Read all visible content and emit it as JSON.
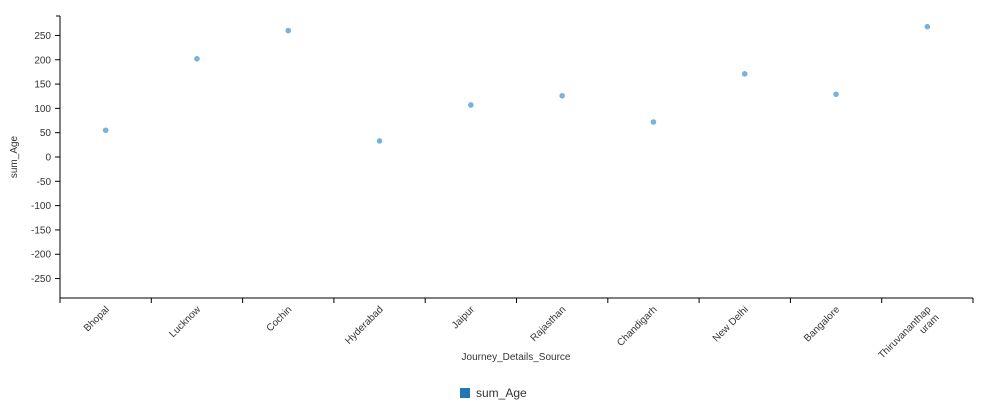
{
  "chart_data": {
    "type": "scatter",
    "xlabel": "Journey_Details_Source",
    "ylabel": "sum_Age",
    "categories": [
      "Bhopal",
      "Lucknow",
      "Cochin",
      "Hyderabad",
      "Jaipur",
      "Rajasthan",
      "Chandigarh",
      "New Delhi",
      "Bangalore",
      "Thiruvananthap uram"
    ],
    "series": [
      {
        "name": "sum_Age",
        "values": [
          55,
          202,
          260,
          33,
          107,
          126,
          72,
          171,
          129,
          268
        ]
      }
    ],
    "ylim": [
      -290,
      290
    ],
    "yticks": [
      -250,
      -200,
      -150,
      -100,
      -50,
      0,
      50,
      100,
      150,
      200,
      250
    ],
    "point_color": "#7ab2d9",
    "legend_color": "#1f77b4",
    "grid": false,
    "legend_position": "bottom-center"
  }
}
